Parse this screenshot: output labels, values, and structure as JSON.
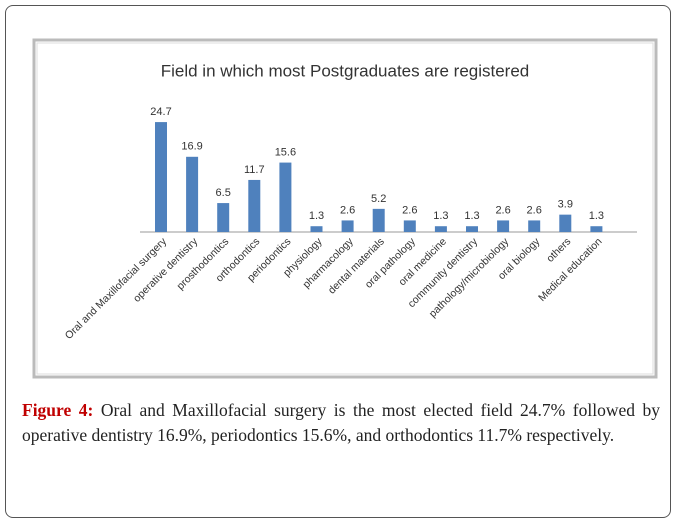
{
  "chart_data": {
    "type": "bar",
    "title": "Field in which most Postgraduates are registered",
    "categories": [
      "Oral and Maxillofacial surgery",
      "operative dentistry",
      "prosthodontics",
      "orthodontics",
      "periodontics",
      "physiology",
      "pharmacology",
      "dental materials",
      "oral pathology",
      "oral medicine",
      "community dentistry",
      "pathology/microbiology",
      "oral biology",
      "others",
      "Medical education"
    ],
    "values": [
      24.7,
      16.9,
      6.5,
      11.7,
      15.6,
      1.3,
      2.6,
      5.2,
      2.6,
      1.3,
      1.3,
      2.6,
      2.6,
      3.9,
      1.3
    ],
    "color": "#4f81bd"
  },
  "caption": {
    "label": "Figure 4:",
    "text": "Oral and Maxillofacial surgery is the most elected field 24.7% followed by operative dentistry 16.9%, periodontics 15.6%, and orthodontics 11.7% respectively."
  }
}
